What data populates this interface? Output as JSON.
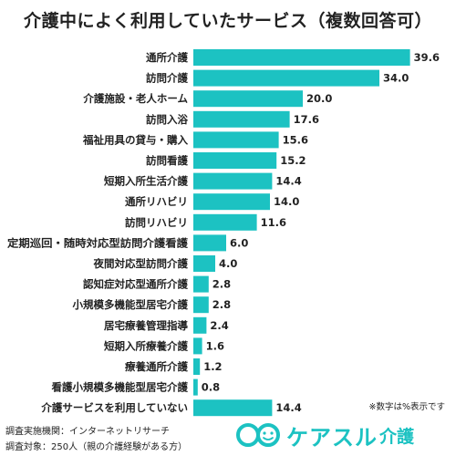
{
  "title": "介護中によく利用していたサービス（複数回答可）",
  "note": "※数字は%表示です",
  "footer": {
    "line1": "調査実施機関：インターネットリサーチ",
    "line2": "調査対象：250人（親の介護経験がある方）"
  },
  "logo": {
    "main": "ケアスル",
    "sub": "介護",
    "mark": "co-mark-icon"
  },
  "colors": {
    "bar": "#1cc2c2",
    "text": "#222222",
    "brand": "#1cc2c2"
  },
  "chart_data": {
    "type": "bar",
    "orientation": "horizontal",
    "title": "介護中によく利用していたサービス（複数回答可）",
    "xlabel": "",
    "ylabel": "",
    "grid": false,
    "categories": [
      "通所介護",
      "訪問介護",
      "介護施設・老人ホーム",
      "訪問入浴",
      "福祉用具の貸与・購入",
      "訪問看護",
      "短期入所生活介護",
      "通所リハビリ",
      "訪問リハビリ",
      "定期巡回・随時対応型訪問介護看護",
      "夜間対応型訪問介護",
      "認知症対応型通所介護",
      "小規模多機能型居宅介護",
      "居宅療養管理指導",
      "短期入所療養介護",
      "療養通所介護",
      "看護小規模多機能型居宅介護",
      "介護サービスを利用していない"
    ],
    "values": [
      39.6,
      34.0,
      20.0,
      17.6,
      15.6,
      15.2,
      14.4,
      14.0,
      11.6,
      6.0,
      4.0,
      2.8,
      2.8,
      2.4,
      1.6,
      1.2,
      0.8,
      14.4
    ],
    "value_labels": [
      "39.6",
      "34.0",
      "20.0",
      "17.6",
      "15.6",
      "15.2",
      "14.4",
      "14.0",
      "11.6",
      "6.0",
      "4.0",
      "2.8",
      "2.8",
      "2.4",
      "1.6",
      "1.2",
      "0.8",
      "14.4"
    ],
    "xlim": [
      0,
      40
    ]
  }
}
